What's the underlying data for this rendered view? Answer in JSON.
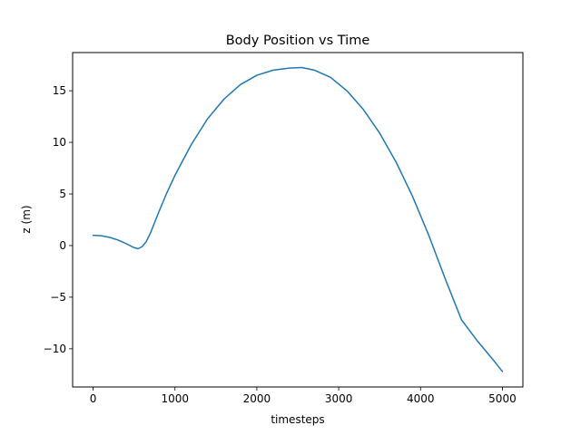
{
  "chart_data": {
    "type": "line",
    "title": "Body Position vs Time",
    "xlabel": "timesteps",
    "ylabel": "z (m)",
    "xlim": [
      -250,
      5250
    ],
    "ylim": [
      -13.7,
      18.7
    ],
    "x_ticks": [
      0,
      1000,
      2000,
      3000,
      4000,
      5000
    ],
    "x_tick_labels": [
      "0",
      "1000",
      "2000",
      "3000",
      "4000",
      "5000"
    ],
    "y_ticks": [
      -10,
      -5,
      0,
      5,
      10,
      15
    ],
    "y_tick_labels": [
      "−10",
      "−5",
      "0",
      "5",
      "10",
      "15"
    ],
    "grid": false,
    "series": [
      {
        "color": "#1f77b4",
        "x": [
          0,
          100,
          200,
          300,
          400,
          500,
          550,
          600,
          650,
          700,
          800,
          900,
          1000,
          1200,
          1400,
          1600,
          1800,
          2000,
          2200,
          2400,
          2550,
          2700,
          2900,
          3100,
          3300,
          3500,
          3700,
          3900,
          4100,
          4300,
          4500,
          4700,
          4900,
          5000
        ],
        "y": [
          1.0,
          0.95,
          0.8,
          0.55,
          0.2,
          -0.2,
          -0.3,
          -0.1,
          0.4,
          1.2,
          3.2,
          5.1,
          6.8,
          9.8,
          12.3,
          14.2,
          15.6,
          16.5,
          17.0,
          17.2,
          17.25,
          17.0,
          16.3,
          15.0,
          13.2,
          10.9,
          8.1,
          4.8,
          1.0,
          -3.2,
          -7.2,
          -9.3,
          -11.2,
          -12.2
        ]
      }
    ]
  }
}
